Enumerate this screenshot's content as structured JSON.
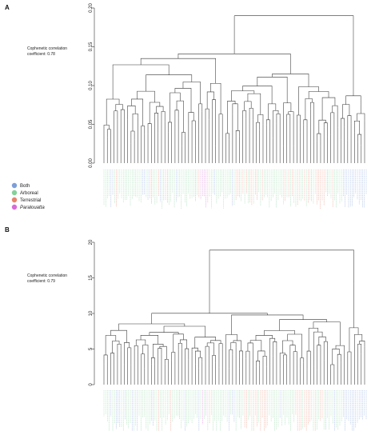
{
  "panels": [
    {
      "letter": "A",
      "coefficient_line1": "Cophenetic correlation",
      "coefficient_line2": "coefficient: 0.78",
      "y_ticks": [
        "0.00",
        "0.05",
        "0.10",
        "0.15",
        "0.20"
      ],
      "y_range": [
        0,
        0.2
      ],
      "root_height": 0.19,
      "right_cluster_height": 0.185
    },
    {
      "letter": "B",
      "coefficient_line1": "Cophenetic correlation",
      "coefficient_line2": "coefficient: 0.79",
      "y_ticks": [
        "0",
        "5",
        "10",
        "15",
        "20"
      ],
      "y_range": [
        0,
        20
      ],
      "root_height": 18.9,
      "right_cluster_height": 14.2
    }
  ],
  "legend": {
    "items": [
      {
        "label": "Both",
        "color": "#7c9ed9",
        "italic": false
      },
      {
        "label": "Arboreal",
        "color": "#84d19a",
        "italic": false
      },
      {
        "label": "Terrestrial",
        "color": "#e8836b",
        "italic": false
      },
      {
        "label": "Paralouatta",
        "color": "#d86bd8",
        "italic": true
      }
    ]
  }
}
